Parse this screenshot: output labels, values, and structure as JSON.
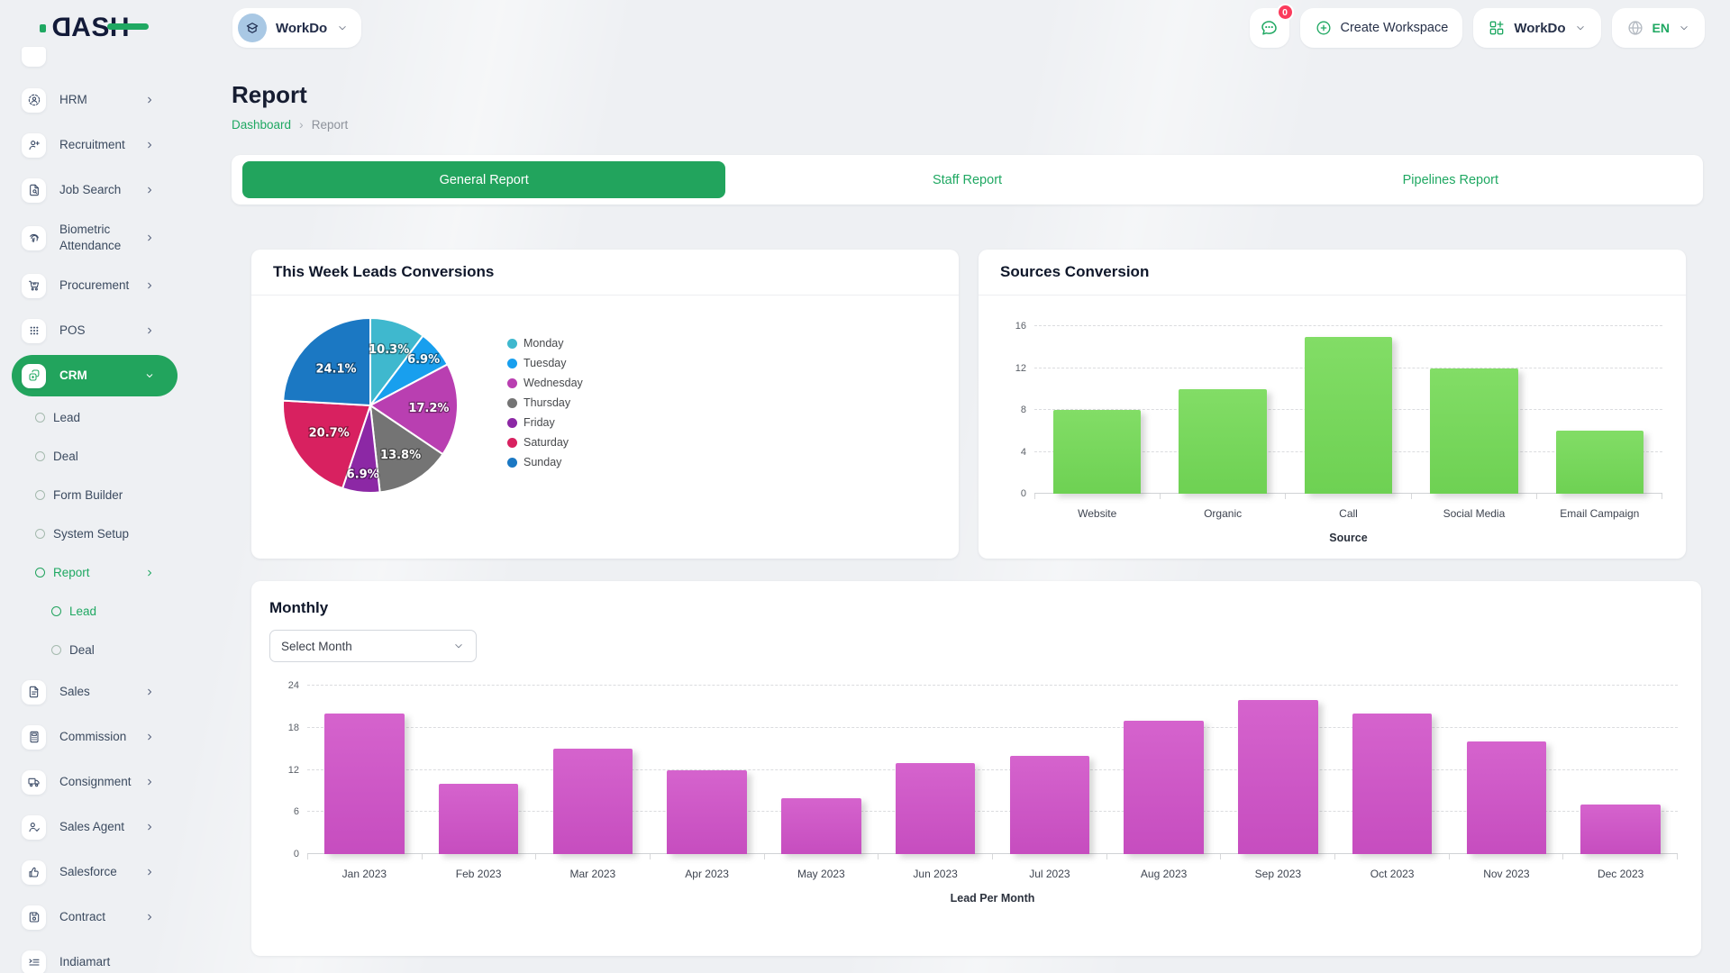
{
  "header": {
    "logo_text": "DASH",
    "workspace": {
      "name": "WorkDo"
    },
    "messages_badge": "0",
    "create_workspace_label": "Create Workspace",
    "account_label": "WorkDo",
    "language": "EN"
  },
  "sidebar": {
    "items": [
      {
        "label": "HRM",
        "icon": "hrm",
        "expandable": true
      },
      {
        "label": "Recruitment",
        "icon": "recruitment",
        "expandable": true
      },
      {
        "label": "Job Search",
        "icon": "job-search",
        "expandable": true
      },
      {
        "label": "Biometric Attendance",
        "icon": "biometric",
        "expandable": true,
        "two_line": true
      },
      {
        "label": "Procurement",
        "icon": "procurement",
        "expandable": true
      },
      {
        "label": "POS",
        "icon": "pos",
        "expandable": true
      },
      {
        "label": "CRM",
        "icon": "crm",
        "expandable": true,
        "active": true,
        "expanded": true
      },
      {
        "label": "Lead",
        "type": "sub"
      },
      {
        "label": "Deal",
        "type": "sub"
      },
      {
        "label": "Form Builder",
        "type": "sub"
      },
      {
        "label": "System Setup",
        "type": "sub"
      },
      {
        "label": "Report",
        "type": "sub",
        "active": true,
        "expandable": true
      },
      {
        "label": "Lead",
        "type": "subsub",
        "active": true
      },
      {
        "label": "Deal",
        "type": "subsub"
      },
      {
        "label": "Sales",
        "icon": "sales",
        "expandable": true
      },
      {
        "label": "Commission",
        "icon": "commission",
        "expandable": true
      },
      {
        "label": "Consignment",
        "icon": "consignment",
        "expandable": true
      },
      {
        "label": "Sales Agent",
        "icon": "sales-agent",
        "expandable": true
      },
      {
        "label": "Salesforce",
        "icon": "salesforce",
        "expandable": true
      },
      {
        "label": "Contract",
        "icon": "contract",
        "expandable": true
      },
      {
        "label": "Indiamart",
        "icon": "indiamart",
        "expandable": false
      }
    ]
  },
  "page": {
    "title": "Report",
    "breadcrumb": [
      "Dashboard",
      "Report"
    ]
  },
  "tabs": [
    {
      "label": "General Report",
      "active": true
    },
    {
      "label": "Staff Report",
      "active": false
    },
    {
      "label": "Pipelines Report",
      "active": false
    }
  ],
  "chart_data": [
    {
      "type": "pie",
      "title": "This Week Leads Conversions",
      "labels": [
        "Monday",
        "Tuesday",
        "Wednesday",
        "Thursday",
        "Friday",
        "Saturday",
        "Sunday"
      ],
      "values": [
        10.3,
        6.9,
        17.2,
        13.8,
        6.9,
        20.7,
        24.1
      ],
      "value_labels": [
        "10.3%",
        "6.9%",
        "17.2%",
        "13.8%",
        "6.9%",
        "20.7%",
        "24.1%"
      ],
      "colors": [
        "#3fb8ce",
        "#189fee",
        "#b93fb1",
        "#747474",
        "#8c28a5",
        "#d82160",
        "#1b78c3"
      ],
      "legend_position": "right"
    },
    {
      "type": "bar",
      "title": "Sources Conversion",
      "categories": [
        "Website",
        "Organic",
        "Call",
        "Social Media",
        "Email Campaign"
      ],
      "values": [
        8,
        10,
        15,
        12,
        6
      ],
      "xlabel": "Source",
      "ylim": [
        0,
        16
      ],
      "yticks": [
        0,
        4,
        8,
        12,
        16
      ],
      "grid": true,
      "bar_color": "#6ed153",
      "bar_color_light": "#82dd66"
    },
    {
      "type": "bar",
      "title": "Monthly",
      "select_placeholder": "Select Month",
      "categories": [
        "Jan 2023",
        "Feb 2023",
        "Mar 2023",
        "Apr 2023",
        "May 2023",
        "Jun 2023",
        "Jul 2023",
        "Aug 2023",
        "Sep 2023",
        "Oct 2023",
        "Nov 2023",
        "Dec 2023"
      ],
      "values": [
        20,
        10,
        15,
        12,
        8,
        13,
        14,
        19,
        22,
        20,
        16,
        7
      ],
      "xlabel": "Lead Per Month",
      "ylim": [
        0,
        24
      ],
      "yticks": [
        0,
        6,
        12,
        18,
        24
      ],
      "grid": true,
      "bar_color": "#c64dbf",
      "bar_color_light": "#d563cd"
    }
  ],
  "colors": {
    "accent_green": "#21a35d",
    "badge_red": "#fb3b5c"
  }
}
